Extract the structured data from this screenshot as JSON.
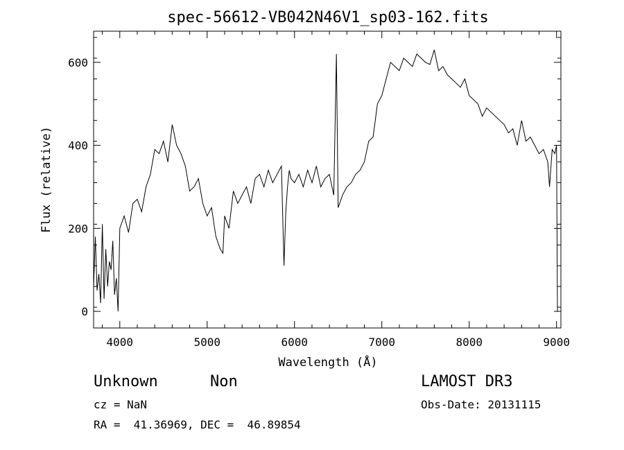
{
  "chart_data": {
    "type": "line",
    "title": "spec-56612-VB042N46V1_sp03-162.fits",
    "xlabel": "Wavelength (Å)",
    "ylabel": "Flux (relative)",
    "xlim": [
      3700,
      9050
    ],
    "ylim": [
      -40,
      675
    ],
    "xticks": [
      4000,
      5000,
      6000,
      7000,
      8000,
      9000
    ],
    "yticks": [
      0,
      200,
      400,
      600
    ],
    "grid": false,
    "series": [
      {
        "x": [
          3700,
          3720,
          3740,
          3760,
          3780,
          3800,
          3820,
          3840,
          3860,
          3880,
          3900,
          3920,
          3940,
          3960,
          3980,
          4000,
          4050,
          4100,
          4150,
          4200,
          4250,
          4300,
          4350,
          4400,
          4450,
          4500,
          4550,
          4600,
          4650,
          4700,
          4750,
          4800,
          4850,
          4900,
          4950,
          5000,
          5050,
          5100,
          5150,
          5180,
          5200,
          5250,
          5300,
          5350,
          5400,
          5450,
          5500,
          5550,
          5600,
          5650,
          5700,
          5750,
          5800,
          5850,
          5880,
          5900,
          5920,
          5940,
          5960,
          6000,
          6050,
          6100,
          6150,
          6200,
          6250,
          6300,
          6350,
          6400,
          6450,
          6480,
          6500,
          6550,
          6600,
          6650,
          6700,
          6750,
          6800,
          6850,
          6900,
          6950,
          7000,
          7050,
          7100,
          7150,
          7200,
          7250,
          7300,
          7350,
          7400,
          7450,
          7500,
          7550,
          7600,
          7650,
          7700,
          7750,
          7800,
          7850,
          7900,
          7950,
          8000,
          8050,
          8100,
          8150,
          8200,
          8250,
          8300,
          8350,
          8400,
          8450,
          8500,
          8550,
          8600,
          8650,
          8700,
          8750,
          8800,
          8850,
          8900,
          8920,
          8950,
          8980,
          9000,
          9010
        ],
        "values": [
          60,
          180,
          50,
          90,
          20,
          210,
          30,
          150,
          60,
          120,
          100,
          170,
          40,
          80,
          0,
          200,
          230,
          190,
          260,
          270,
          240,
          300,
          330,
          390,
          380,
          410,
          360,
          450,
          400,
          380,
          350,
          290,
          300,
          320,
          260,
          230,
          250,
          180,
          150,
          140,
          230,
          200,
          290,
          260,
          280,
          300,
          260,
          320,
          330,
          300,
          340,
          310,
          330,
          350,
          110,
          240,
          300,
          340,
          320,
          310,
          330,
          300,
          340,
          310,
          350,
          300,
          320,
          330,
          280,
          620,
          250,
          280,
          300,
          310,
          330,
          340,
          360,
          410,
          420,
          500,
          520,
          560,
          600,
          590,
          580,
          610,
          600,
          590,
          620,
          610,
          600,
          595,
          630,
          580,
          590,
          570,
          560,
          550,
          540,
          560,
          520,
          510,
          500,
          470,
          490,
          480,
          470,
          460,
          450,
          430,
          440,
          400,
          460,
          410,
          420,
          400,
          380,
          390,
          360,
          300,
          390,
          380,
          400,
          0
        ]
      }
    ]
  },
  "info": {
    "object_class": "Unknown",
    "object_subclass": "Non",
    "survey": "LAMOST DR3",
    "cz": "cz = NaN",
    "obs_date": "Obs-Date: 20131115",
    "coords": "RA =  41.36969, DEC =  46.89854"
  }
}
